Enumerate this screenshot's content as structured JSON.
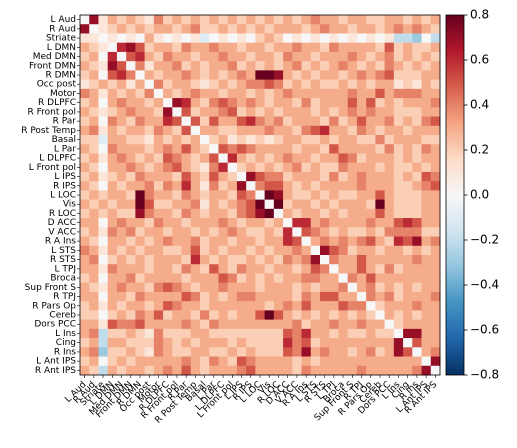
{
  "chart_data": {
    "type": "heatmap",
    "labels": [
      "L Aud",
      "R Aud",
      "Striate",
      "L DMN",
      "Med DMN",
      "Front DMN",
      "R DMN",
      "Occ post",
      "Motor",
      "R DLPFC",
      "R Front pol",
      "R Par",
      "R Post Temp",
      "Basal",
      "L Par",
      "L DLPFC",
      "L Front pol",
      "L IPS",
      "R IPS",
      "L LOC",
      "Vis",
      "R LOC",
      "D ACC",
      "V ACC",
      "R A Ins",
      "L STS",
      "R STS",
      "L TPJ",
      "Broca",
      "Sup Front S",
      "R TPJ",
      "R Pars Op",
      "Cereb",
      "Dors PCC",
      "L Ins",
      "Cing",
      "R Ins",
      "L Ant IPS",
      "R Ant IPS"
    ],
    "symmetric": true,
    "values": [
      [
        0
      ],
      [
        0.7,
        0
      ],
      [
        0.1,
        0.1,
        0
      ],
      [
        0.3,
        0.2,
        0.1,
        0
      ],
      [
        0.2,
        0.3,
        0,
        0.6,
        0
      ],
      [
        0.3,
        0.2,
        0.1,
        0.7,
        0.5,
        0
      ],
      [
        0.2,
        0.3,
        0,
        0.5,
        0.6,
        0.4,
        0
      ],
      [
        0.1,
        0.2,
        0.3,
        0.2,
        0.3,
        0.1,
        0.3,
        0
      ],
      [
        0.4,
        0.3,
        0.1,
        0.3,
        0.2,
        0.3,
        0.2,
        0.4,
        0
      ],
      [
        0.2,
        0.3,
        0,
        0.3,
        0.4,
        0.3,
        0.3,
        0.2,
        0.3,
        0
      ],
      [
        0.3,
        0.2,
        0.1,
        0.2,
        0.3,
        0.4,
        0.3,
        0.3,
        0.2,
        0.7,
        0
      ],
      [
        0.2,
        0.3,
        0,
        0.4,
        0.3,
        0.2,
        0.4,
        0.3,
        0.3,
        0.6,
        0.5,
        0
      ],
      [
        0.3,
        0.4,
        0.1,
        0.3,
        0.2,
        0.3,
        0.3,
        0.2,
        0.4,
        0.3,
        0.2,
        0.5,
        0
      ],
      [
        0.2,
        0.2,
        -0.1,
        0.3,
        0.3,
        0.2,
        0.2,
        0.1,
        0.3,
        0.2,
        0.3,
        0.2,
        0.3,
        0
      ],
      [
        0.3,
        0.2,
        0,
        0.4,
        0.3,
        0.3,
        0.3,
        0.2,
        0.3,
        0.4,
        0.3,
        0.5,
        0.3,
        0.2,
        0
      ],
      [
        0.2,
        0.3,
        0.1,
        0.3,
        0.4,
        0.3,
        0.2,
        0.3,
        0.2,
        0.5,
        0.4,
        0.3,
        0.2,
        0.3,
        0.5,
        0
      ],
      [
        0.3,
        0.2,
        0,
        0.3,
        0.3,
        0.4,
        0.3,
        0.2,
        0.3,
        0.4,
        0.5,
        0.3,
        0.2,
        0.1,
        0.4,
        0.6,
        0
      ],
      [
        0.2,
        0.3,
        0.1,
        0.2,
        0.3,
        0.2,
        0.4,
        0.3,
        0.3,
        0.3,
        0.2,
        0.5,
        0.3,
        0.2,
        0.5,
        0.3,
        0.2,
        0
      ],
      [
        0.3,
        0.2,
        0,
        0.3,
        0.2,
        0.3,
        0.3,
        0.4,
        0.2,
        0.4,
        0.3,
        0.6,
        0.3,
        0.1,
        0.4,
        0.2,
        0.3,
        0.7,
        0
      ],
      [
        0.2,
        0.3,
        0.2,
        0.3,
        0.3,
        0.2,
        0.8,
        0.4,
        0.3,
        0.3,
        0.2,
        0.4,
        0.3,
        0.2,
        0.3,
        0.3,
        0.2,
        0.5,
        0.4,
        0
      ],
      [
        0.3,
        0.2,
        0.3,
        0.2,
        0.3,
        0.3,
        0.8,
        0.5,
        0.2,
        0.2,
        0.3,
        0.3,
        0.4,
        0.1,
        0.3,
        0.2,
        0.3,
        0.4,
        0.5,
        0.8,
        0
      ],
      [
        0.2,
        0.3,
        0.2,
        0.3,
        0.2,
        0.2,
        0.7,
        0.4,
        0.3,
        0.3,
        0.2,
        0.4,
        0.3,
        0.2,
        0.3,
        0.3,
        0.2,
        0.4,
        0.5,
        0.7,
        0.8,
        0
      ],
      [
        0.3,
        0.3,
        0,
        0.3,
        0.4,
        0.3,
        0.3,
        0.2,
        0.4,
        0.3,
        0.3,
        0.2,
        0.3,
        0.3,
        0.3,
        0.4,
        0.3,
        0.2,
        0.3,
        0.3,
        0.2,
        0.3,
        0
      ],
      [
        0.2,
        0.3,
        0.1,
        0.4,
        0.3,
        0.4,
        0.2,
        0.3,
        0.3,
        0.2,
        0.3,
        0.3,
        0.2,
        0.3,
        0.2,
        0.3,
        0.4,
        0.3,
        0.2,
        0.2,
        0.3,
        0.2,
        0.6,
        0
      ],
      [
        0.3,
        0.2,
        0,
        0.3,
        0.3,
        0.2,
        0.3,
        0.2,
        0.3,
        0.4,
        0.3,
        0.3,
        0.4,
        0.2,
        0.3,
        0.3,
        0.2,
        0.3,
        0.3,
        0.2,
        0.3,
        0.3,
        0.6,
        0.5,
        0
      ],
      [
        0.4,
        0.3,
        0.1,
        0.3,
        0.2,
        0.3,
        0.2,
        0.3,
        0.3,
        0.2,
        0.2,
        0.3,
        0.5,
        0.2,
        0.3,
        0.2,
        0.3,
        0.3,
        0.2,
        0.3,
        0.2,
        0.3,
        0.3,
        0.4,
        0.3,
        0
      ],
      [
        0.3,
        0.4,
        0,
        0.2,
        0.3,
        0.2,
        0.3,
        0.2,
        0.3,
        0.3,
        0.3,
        0.2,
        0.6,
        0.3,
        0.2,
        0.3,
        0.2,
        0.2,
        0.3,
        0.2,
        0.3,
        0.2,
        0.4,
        0.3,
        0.4,
        0.7,
        0
      ],
      [
        0.3,
        0.3,
        0.1,
        0.4,
        0.3,
        0.3,
        0.3,
        0.2,
        0.3,
        0.3,
        0.2,
        0.4,
        0.3,
        0.2,
        0.5,
        0.3,
        0.2,
        0.4,
        0.3,
        0.3,
        0.2,
        0.3,
        0.3,
        0.2,
        0.3,
        0.5,
        0.4,
        0
      ],
      [
        0.2,
        0.3,
        0,
        0.3,
        0.3,
        0.4,
        0.2,
        0.3,
        0.3,
        0.3,
        0.3,
        0.2,
        0.3,
        0.3,
        0.3,
        0.5,
        0.4,
        0.2,
        0.3,
        0.2,
        0.3,
        0.2,
        0.3,
        0.3,
        0.4,
        0.4,
        0.3,
        0.3,
        0
      ],
      [
        0.3,
        0.2,
        0.1,
        0.3,
        0.4,
        0.3,
        0.3,
        0.2,
        0.4,
        0.5,
        0.4,
        0.3,
        0.2,
        0.3,
        0.3,
        0.4,
        0.3,
        0.3,
        0.3,
        0.2,
        0.3,
        0.3,
        0.3,
        0.2,
        0.3,
        0.2,
        0.3,
        0.3,
        0.4,
        0
      ],
      [
        0.3,
        0.3,
        0,
        0.3,
        0.3,
        0.2,
        0.4,
        0.3,
        0.3,
        0.3,
        0.3,
        0.5,
        0.4,
        0.2,
        0.3,
        0.2,
        0.3,
        0.4,
        0.4,
        0.3,
        0.3,
        0.3,
        0.3,
        0.2,
        0.4,
        0.3,
        0.5,
        0.5,
        0.3,
        0.3,
        0
      ],
      [
        0.2,
        0.3,
        0.1,
        0.3,
        0.2,
        0.3,
        0.3,
        0.2,
        0.3,
        0.5,
        0.4,
        0.3,
        0.3,
        0.2,
        0.3,
        0.3,
        0.3,
        0.3,
        0.3,
        0.3,
        0.2,
        0.3,
        0.4,
        0.3,
        0.5,
        0.3,
        0.3,
        0.3,
        0.5,
        0.4,
        0.4,
        0
      ],
      [
        0.2,
        0.2,
        0,
        0.2,
        0.3,
        0.2,
        0.4,
        0.3,
        0.5,
        0.2,
        0.3,
        0.3,
        0.2,
        0.4,
        0.2,
        0.3,
        0.2,
        0.3,
        0.3,
        0.5,
        0.8,
        0.5,
        0.3,
        0.2,
        0.3,
        0.2,
        0.3,
        0.2,
        0.3,
        0.2,
        0.3,
        0.2,
        0
      ],
      [
        0.3,
        0.3,
        0.1,
        0.5,
        0.4,
        0.4,
        0.5,
        0.3,
        0.3,
        0.3,
        0.3,
        0.4,
        0.3,
        0.2,
        0.4,
        0.3,
        0.3,
        0.3,
        0.3,
        0.3,
        0.3,
        0.3,
        0.3,
        0.4,
        0.2,
        0.3,
        0.3,
        0.4,
        0.3,
        0.3,
        0.4,
        0.3,
        0.3,
        0
      ],
      [
        0.3,
        0.4,
        -0.2,
        0.2,
        0.2,
        0.3,
        0.2,
        0.1,
        0.4,
        0.2,
        0.2,
        0.2,
        0.3,
        0.3,
        0.2,
        0.2,
        0.2,
        0.2,
        0.2,
        0.2,
        0.2,
        0.2,
        0.5,
        0.4,
        0.6,
        0.3,
        0.3,
        0.2,
        0.3,
        0.2,
        0.2,
        0.3,
        0.2,
        0.2,
        0
      ],
      [
        0.2,
        0.3,
        -0.2,
        0.3,
        0.3,
        0.2,
        0.2,
        0.2,
        0.4,
        0.3,
        0.2,
        0.3,
        0.2,
        0.3,
        0.3,
        0.3,
        0.2,
        0.3,
        0.2,
        0.2,
        0.2,
        0.2,
        0.6,
        0.4,
        0.5,
        0.2,
        0.3,
        0.3,
        0.3,
        0.3,
        0.3,
        0.3,
        0.3,
        0.3,
        0.7,
        0
      ],
      [
        0.3,
        0.4,
        -0.3,
        0.2,
        0.2,
        0.3,
        0.2,
        0.1,
        0.4,
        0.3,
        0.2,
        0.2,
        0.3,
        0.3,
        0.2,
        0.2,
        0.3,
        0.2,
        0.3,
        0.2,
        0.2,
        0.2,
        0.5,
        0.4,
        0.7,
        0.3,
        0.4,
        0.3,
        0.3,
        0.2,
        0.3,
        0.4,
        0.2,
        0.3,
        0.7,
        0.5,
        0
      ],
      [
        0.2,
        0.3,
        0,
        0.2,
        0.3,
        0.2,
        0.3,
        0.3,
        0.3,
        0.3,
        0.3,
        0.4,
        0.3,
        0.2,
        0.4,
        0.3,
        0.2,
        0.5,
        0.4,
        0.3,
        0.3,
        0.3,
        0.3,
        0.2,
        0.3,
        0.2,
        0.3,
        0.3,
        0.3,
        0.3,
        0.3,
        0.3,
        0.3,
        0.3,
        0.3,
        0.3,
        0.3,
        0
      ],
      [
        0.3,
        0.2,
        -0.2,
        0.3,
        0.2,
        0.3,
        0.3,
        0.2,
        0.3,
        0.4,
        0.3,
        0.5,
        0.3,
        0.2,
        0.3,
        0.3,
        0.3,
        0.4,
        0.5,
        0.3,
        0.3,
        0.3,
        0.3,
        0.2,
        0.4,
        0.3,
        0.3,
        0.3,
        0.3,
        0.3,
        0.4,
        0.3,
        0.3,
        0.3,
        0.3,
        0.3,
        0.4,
        0.7,
        0
      ]
    ],
    "clim": [
      -0.8,
      0.8
    ],
    "colormap": [
      "#053061",
      "#2166ac",
      "#4393c3",
      "#92c5de",
      "#d1e5f0",
      "#f7f7f7",
      "#fddbc7",
      "#f4a582",
      "#d6604d",
      "#b2182b",
      "#67001f"
    ],
    "cticks": [
      {
        "value": -0.8,
        "label": "−0.8"
      },
      {
        "value": -0.6,
        "label": "−0.6"
      },
      {
        "value": -0.4,
        "label": "−0.4"
      },
      {
        "value": -0.2,
        "label": "−0.2"
      },
      {
        "value": 0,
        "label": "0.0"
      },
      0.2,
      0.4,
      0.6,
      0.8
    ]
  }
}
